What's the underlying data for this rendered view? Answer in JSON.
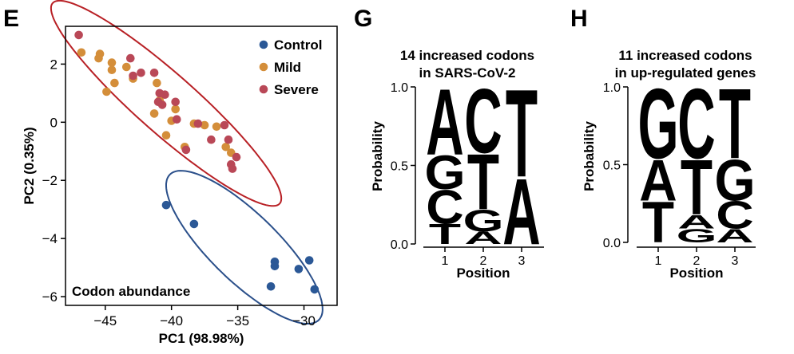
{
  "colors": {
    "control": "#2b5896",
    "mild": "#d48e3a",
    "severe": "#b94857",
    "ellipse_red": "#b82025",
    "ellipse_blue": "#2a4f8a",
    "logo_orange": "#f28c1e",
    "logo_blue": "#2b50a0"
  },
  "chart_data": [
    {
      "panel": "E",
      "type": "scatter",
      "title": "",
      "annotation": "Codon abundance",
      "xlabel": "PC1 (98.98%)",
      "ylabel": "PC2 (0.35%)",
      "xlim": [
        -48,
        -27.5
      ],
      "ylim": [
        -6.3,
        3.3
      ],
      "xticks": [
        -45,
        -40,
        -35,
        -30
      ],
      "yticks": [
        2,
        0,
        -2,
        -4,
        -6
      ],
      "legend_position": "top-right",
      "series": [
        {
          "name": "Control",
          "color_key": "control",
          "points": [
            {
              "x": -40.4,
              "y": -2.85
            },
            {
              "x": -38.3,
              "y": -3.5
            },
            {
              "x": -32.2,
              "y": -4.8
            },
            {
              "x": -32.2,
              "y": -4.95
            },
            {
              "x": -30.4,
              "y": -5.05
            },
            {
              "x": -29.6,
              "y": -4.75
            },
            {
              "x": -32.5,
              "y": -5.65
            },
            {
              "x": -29.2,
              "y": -5.75
            }
          ]
        },
        {
          "name": "Mild",
          "color_key": "mild",
          "points": [
            {
              "x": -46.8,
              "y": 2.4
            },
            {
              "x": -45.4,
              "y": 2.35
            },
            {
              "x": -45.5,
              "y": 2.2
            },
            {
              "x": -44.5,
              "y": 2.05
            },
            {
              "x": -43.4,
              "y": 1.9
            },
            {
              "x": -44.5,
              "y": 1.8
            },
            {
              "x": -44.3,
              "y": 1.35
            },
            {
              "x": -44.9,
              "y": 1.05
            },
            {
              "x": -42.9,
              "y": 1.5
            },
            {
              "x": -41.1,
              "y": 1.35
            },
            {
              "x": -40.9,
              "y": 0.75
            },
            {
              "x": -41.3,
              "y": 0.3
            },
            {
              "x": -39.7,
              "y": 0.45
            },
            {
              "x": -40.0,
              "y": 0.05
            },
            {
              "x": -38.3,
              "y": -0.05
            },
            {
              "x": -40.4,
              "y": -0.45
            },
            {
              "x": -37.5,
              "y": -0.1
            },
            {
              "x": -36.6,
              "y": -0.15
            },
            {
              "x": -39.0,
              "y": -0.85
            },
            {
              "x": -35.9,
              "y": -0.85
            },
            {
              "x": -35.5,
              "y": -1.05
            }
          ]
        },
        {
          "name": "Severe",
          "color_key": "severe",
          "points": [
            {
              "x": -47.0,
              "y": 3.0
            },
            {
              "x": -43.1,
              "y": 2.2
            },
            {
              "x": -42.3,
              "y": 1.7
            },
            {
              "x": -42.9,
              "y": 1.6
            },
            {
              "x": -41.3,
              "y": 1.7
            },
            {
              "x": -40.9,
              "y": 1.0
            },
            {
              "x": -40.5,
              "y": 0.95
            },
            {
              "x": -41.0,
              "y": 0.7
            },
            {
              "x": -40.7,
              "y": 0.6
            },
            {
              "x": -39.7,
              "y": 0.7
            },
            {
              "x": -39.6,
              "y": 0.1
            },
            {
              "x": -38.0,
              "y": -0.05
            },
            {
              "x": -37.0,
              "y": -0.6
            },
            {
              "x": -36.0,
              "y": -0.1
            },
            {
              "x": -35.7,
              "y": -0.6
            },
            {
              "x": -38.9,
              "y": -0.95
            },
            {
              "x": -35.1,
              "y": -1.2
            },
            {
              "x": -35.5,
              "y": -1.45
            },
            {
              "x": -35.4,
              "y": -1.6
            }
          ]
        }
      ],
      "ellipses": [
        {
          "group": "Mild+Severe",
          "color_key": "ellipse_red",
          "center": [
            -40.4,
            0.65
          ],
          "semi_axes": [
            9.3,
            1.25
          ],
          "angle_deg": -21
        },
        {
          "group": "Control",
          "color_key": "ellipse_blue",
          "center": [
            -34.5,
            -4.3
          ],
          "semi_axes": [
            6.3,
            1.45
          ],
          "angle_deg": -21
        }
      ]
    },
    {
      "panel": "G",
      "type": "sequence-logo",
      "title_lines": [
        "14 increased codons",
        "in SARS-CoV-2"
      ],
      "xlabel": "Position",
      "ylabel": "Probability",
      "ylim": [
        0,
        1.0
      ],
      "yticks": [
        "0.0",
        "0.5",
        "1.0"
      ],
      "positions": [
        "1",
        "2",
        "3"
      ],
      "stacks": [
        [
          {
            "letter": "T",
            "p": 0.13,
            "color_key": "logo_orange"
          },
          {
            "letter": "C",
            "p": 0.22,
            "color_key": "logo_blue"
          },
          {
            "letter": "G",
            "p": 0.22,
            "color_key": "logo_blue"
          },
          {
            "letter": "A",
            "p": 0.43,
            "color_key": "logo_orange"
          }
        ],
        [
          {
            "letter": "A",
            "p": 0.08,
            "color_key": "logo_orange"
          },
          {
            "letter": "G",
            "p": 0.14,
            "color_key": "logo_blue"
          },
          {
            "letter": "T",
            "p": 0.36,
            "color_key": "logo_orange"
          },
          {
            "letter": "C",
            "p": 0.42,
            "color_key": "logo_blue"
          }
        ],
        [
          {
            "letter": "A",
            "p": 0.43,
            "color_key": "logo_orange"
          },
          {
            "letter": "T",
            "p": 0.57,
            "color_key": "logo_orange"
          }
        ]
      ]
    },
    {
      "panel": "H",
      "type": "sequence-logo",
      "title_lines": [
        "11 increased codons",
        "in up-regulated genes"
      ],
      "xlabel": "Position",
      "ylabel": "Probability",
      "ylim": [
        0,
        1.0
      ],
      "yticks": [
        "0.0",
        "0.5",
        "1.0"
      ],
      "positions": [
        "1",
        "2",
        "3"
      ],
      "stacks": [
        [
          {
            "letter": "T",
            "p": 0.27,
            "color_key": "logo_orange"
          },
          {
            "letter": "A",
            "p": 0.27,
            "color_key": "logo_orange"
          },
          {
            "letter": "G",
            "p": 0.46,
            "color_key": "logo_blue"
          }
        ],
        [
          {
            "letter": "G",
            "p": 0.09,
            "color_key": "logo_blue"
          },
          {
            "letter": "A",
            "p": 0.09,
            "color_key": "logo_orange"
          },
          {
            "letter": "T",
            "p": 0.36,
            "color_key": "logo_orange"
          },
          {
            "letter": "C",
            "p": 0.46,
            "color_key": "logo_blue"
          }
        ],
        [
          {
            "letter": "A",
            "p": 0.09,
            "color_key": "logo_orange"
          },
          {
            "letter": "C",
            "p": 0.18,
            "color_key": "logo_blue"
          },
          {
            "letter": "G",
            "p": 0.27,
            "color_key": "logo_blue"
          },
          {
            "letter": "T",
            "p": 0.46,
            "color_key": "logo_orange"
          }
        ]
      ]
    }
  ]
}
